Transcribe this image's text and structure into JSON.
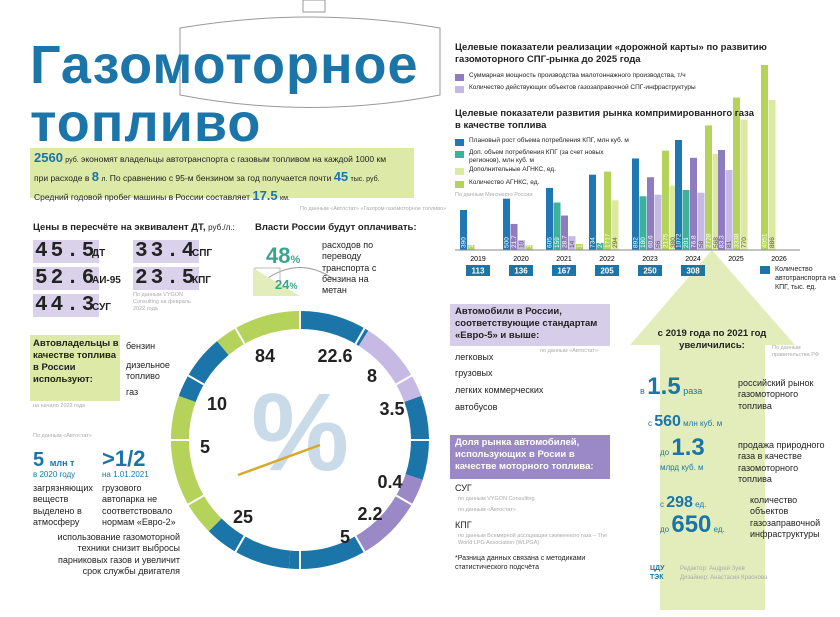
{
  "header": {
    "title_line1": "Газомоторное",
    "title_line2": "топливо"
  },
  "intro": {
    "saving": "2560",
    "saving_unit": "руб.",
    "text1": "экономят владельцы автотранспорта с газовым топливом на каждой 1000 км",
    "text2": "при расходе в",
    "liters": "8",
    "liters_unit": "л.",
    "text3": "По сравнению с 95-м бензином за год получается почти",
    "annual": "45",
    "annual_unit": "тыс. руб.",
    "text4": "Средний годовой пробег машины в России составляет",
    "mileage": "17.5",
    "mileage_unit": "км.",
    "source": "По данным «Автостат» «Газпром газомоторное топливо»"
  },
  "prices": {
    "title": "Цены в пересчёте на эквивалент ДТ,",
    "unit": "руб./л.:",
    "items": [
      {
        "value": "45.5",
        "fuel": "ДТ"
      },
      {
        "value": "52.6",
        "fuel": "АИ-95"
      },
      {
        "value": "44.3",
        "fuel": "СУГ"
      },
      {
        "value": "33.4",
        "fuel": "СПГ"
      },
      {
        "value": "23.5",
        "fuel": "КПГ"
      }
    ],
    "source": "По данным VYGON Consulting на февраль 2022 года"
  },
  "subsidy": {
    "title": "Власти России будут оплачивать:",
    "share1": "48",
    "share2": "24",
    "percent": "%",
    "text": "расходов по переводу транспорта с бензина на метан"
  },
  "owners": {
    "title": "Автовладельцы в качестве топлива в России используют:",
    "source": "на начало 2022 года",
    "labels": [
      "бензин",
      "дизельное топливо",
      "газ"
    ]
  },
  "dial": {
    "symbol": "%",
    "values": [
      "84",
      "22.6",
      "8",
      "3.5",
      "0.4",
      "2.2",
      "5",
      "25",
      "5",
      "10"
    ]
  },
  "euro5": {
    "title": "Автомобили в России, соответствующие стандартам «Евро-5» и выше:",
    "source": "по данным «Автостат»",
    "labels": [
      "легковых",
      "грузовых",
      "легких коммерческих",
      "автобусов"
    ]
  },
  "share": {
    "title": "Доля рынка автомобилей, использующих в Росии в качестве моторного топлива:",
    "lpg": "СУГ",
    "cng": "КПГ",
    "src1": "по данным VYGON Consulting",
    "src2": "по данным «Автостат»",
    "src3": "по данным Всемирной ассоциации сжиженного газа – The World LPG Association (WLPGA)",
    "note": "*Разница данных связана с методиками статистического подсчёта"
  },
  "emissions": {
    "source": "По данным «Автостат»",
    "amount": "5",
    "unit": "млн т",
    "year": "в 2020 году",
    "text": "загрязняющих веществ выделено в атмосферу",
    "fleet_share": ">1/2",
    "fleet_date": "на 1.01.2021",
    "fleet_text": "грузового автопарка не соответствовало нормам «Евро-2»",
    "benefit": "использование газомоторной техники снизит выбросы парниковых газов и увеличит срок службы двигателя"
  },
  "roadmap": {
    "title": "Целевые показатели реализации «дорожной карты» по развитию газомоторного СПГ-рынка до 2025 года",
    "title2": "Целевые показатели развития рынка компримированного газа в качестве топлива",
    "source": "По данным Минэнерго России",
    "vehicles": {
      "label": "Количество автотранспорта на КПГ, тыс. ед.",
      "values": [
        113,
        136,
        167,
        205,
        250,
        308
      ]
    }
  },
  "chart_data": {
    "type": "bar",
    "categories": [
      "2019",
      "2020",
      "2021",
      "2022",
      "2023",
      "2024",
      "2025",
      "2026"
    ],
    "series": [
      {
        "name": "Плановый рост объема потребления КПГ, млн куб. м",
        "color": "#1f78b4",
        "values": [
          390,
          500,
          605,
          734,
          892,
          1072,
          null,
          null
        ]
      },
      {
        "name": "Доп. объем потребления КПГ (за счет новых регионов), млн куб. м",
        "color": "#3fb09c",
        "values": [
          null,
          null,
          159,
          24,
          180,
          201,
          null,
          null
        ]
      },
      {
        "name": "Суммарная мощность производства малотоннажного производства, т/ч",
        "color": "#8f7cc0",
        "values": [
          null,
          21.7,
          28.7,
          null,
          60.6,
          76.8,
          83.3,
          null
        ]
      },
      {
        "name": "Количество действующих объектов газозаправочной СПГ-инфраструктуры",
        "color": "#c6bae4",
        "values": [
          null,
          10,
          14,
          null,
          56,
          58,
          81,
          null
        ]
      },
      {
        "name": "Количество АГНКС, ед.",
        "color": "#b5d25a",
        "values": [
          110,
          105,
          129,
          1717,
          2175,
          2728,
          3338,
          4051
        ]
      },
      {
        "name": "Дополнительные АГНКС, ед.",
        "color": "#dce9a0",
        "values": [
          null,
          null,
          null,
          294,
          380,
          568,
          770,
          886
        ]
      }
    ]
  },
  "growth": {
    "title": "с 2019 года по 2021 год увеличились:",
    "source": "По данным правительства РФ",
    "market_from": "в",
    "market_value": "1.5",
    "market_unit": "раза",
    "market_text": "российский рынок газомоторного топлива",
    "gas_from": "с",
    "gas_start": "560",
    "gas_start_unit": "млн куб. м",
    "gas_to": "до",
    "gas_end": "1.3",
    "gas_end_unit": "млрд куб. м",
    "gas_text": "продажа природного газа в качестве газомоторного топлива",
    "stations_from": "с",
    "stations_start": "298",
    "stations_to": "до",
    "stations_end": "650",
    "stations_unit": "ед.",
    "stations_text": "количество объектов газозаправочной инфраструктуры"
  },
  "credits": {
    "org": "ЦДУ ТЭК",
    "editor": "Редактор: Андрей Зуев",
    "designer": "Дизайнер: Анастасия Краснова"
  }
}
